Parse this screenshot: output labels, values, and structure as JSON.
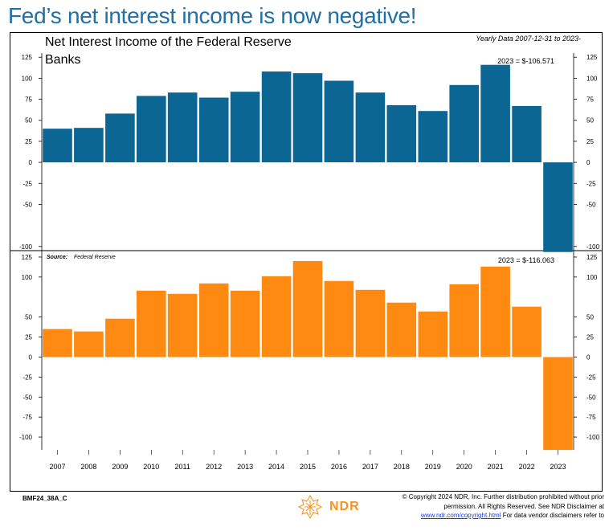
{
  "headline": "Fed’s net interest income is now negative!",
  "chart_title": "Net Interest Income of the Federal Reserve Banks",
  "subtitle": "Yearly Data 2007-12-31  to 2023-",
  "footer_code": "BMF24_38A_C",
  "logo_text": "NDR",
  "copyright": {
    "line1": "© Copyright 2024  NDR, Inc. Further distribution prohibited without prior",
    "line2": "permission.   All Rights Reserved. See NDR Disclaimer at",
    "link": "www.ndr.com/copyright.html",
    "line3_rest": "  For data vendor disclaimers refer to"
  },
  "colors": {
    "top": "#0b6694",
    "bottom": "#ff8a12",
    "headline": "#1f6fa8"
  },
  "chart_data": [
    {
      "type": "bar",
      "panel": "top",
      "categories": [
        "2007",
        "2008",
        "2009",
        "2010",
        "2011",
        "2012",
        "2013",
        "2014",
        "2015",
        "2016",
        "2017",
        "2018",
        "2019",
        "2020",
        "2021",
        "2022",
        "2023"
      ],
      "values": [
        40,
        41,
        58,
        79,
        83,
        77,
        84,
        108,
        106,
        97,
        83,
        68,
        61,
        92,
        116,
        67,
        -106.571
      ],
      "ylim": [
        -105,
        130
      ],
      "yticks": [
        125,
        100,
        75,
        50,
        25,
        0,
        -25,
        -50,
        -100
      ],
      "annotation": "2023 = $-106.571"
    },
    {
      "type": "bar",
      "panel": "bottom",
      "categories": [
        "2007",
        "2008",
        "2009",
        "2010",
        "2011",
        "2012",
        "2013",
        "2014",
        "2015",
        "2016",
        "2017",
        "2018",
        "2019",
        "2020",
        "2021",
        "2022",
        "2023"
      ],
      "values": [
        35,
        32,
        48,
        83,
        79,
        92,
        83,
        101,
        120,
        95,
        84,
        68,
        57,
        91,
        113,
        63,
        -116.063
      ],
      "ylim": [
        -116,
        133
      ],
      "yticks": [
        125,
        100,
        50,
        25,
        0,
        -25,
        -50,
        -75,
        -100
      ],
      "source_label": "Source:",
      "source": "Federal Reserve",
      "annotation": "2023 = $-116.063"
    }
  ]
}
